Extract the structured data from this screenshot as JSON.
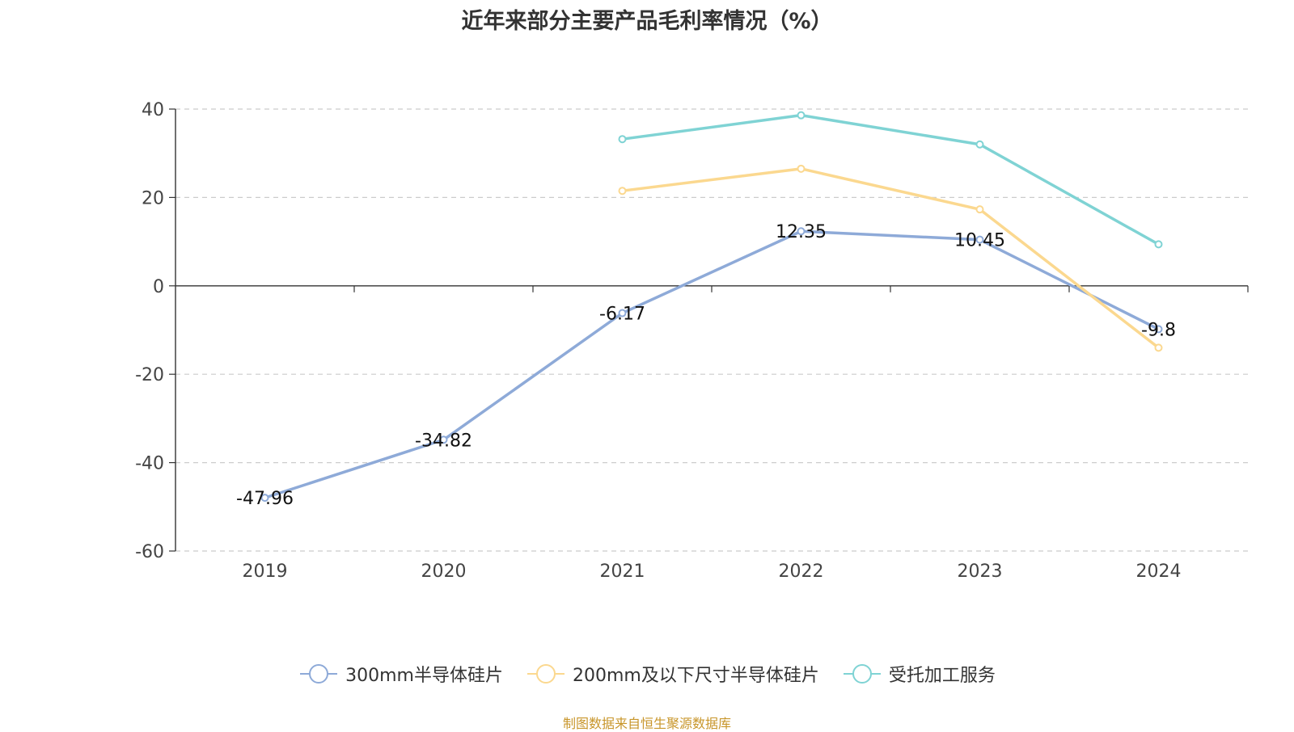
{
  "title": "近年来部分主要产品毛利率情况（%）",
  "source": "制图数据来自恒生聚源数据库",
  "chart_data": {
    "type": "line",
    "categories": [
      "2019",
      "2020",
      "2021",
      "2022",
      "2023",
      "2024"
    ],
    "ylim": [
      -60,
      40
    ],
    "yticks": [
      40,
      20,
      0,
      -20,
      -40,
      -60
    ],
    "grid": true,
    "legend_position": "bottom",
    "series": [
      {
        "name": "300mm半导体硅片",
        "color": "#8eaad8",
        "values": [
          -47.96,
          -34.82,
          -6.17,
          12.35,
          10.45,
          -9.8
        ],
        "labels": [
          "-47.96",
          "-34.82",
          "-6.17",
          "12.35",
          "10.45",
          "-9.8"
        ]
      },
      {
        "name": "200mm及以下尺寸半导体硅片",
        "color": "#fbd88f",
        "values": [
          null,
          null,
          21.5,
          26.5,
          17.3,
          -14.0
        ]
      },
      {
        "name": "受托加工服务",
        "color": "#7fd3d4",
        "values": [
          null,
          null,
          33.2,
          38.6,
          32.0,
          9.4
        ]
      }
    ]
  }
}
